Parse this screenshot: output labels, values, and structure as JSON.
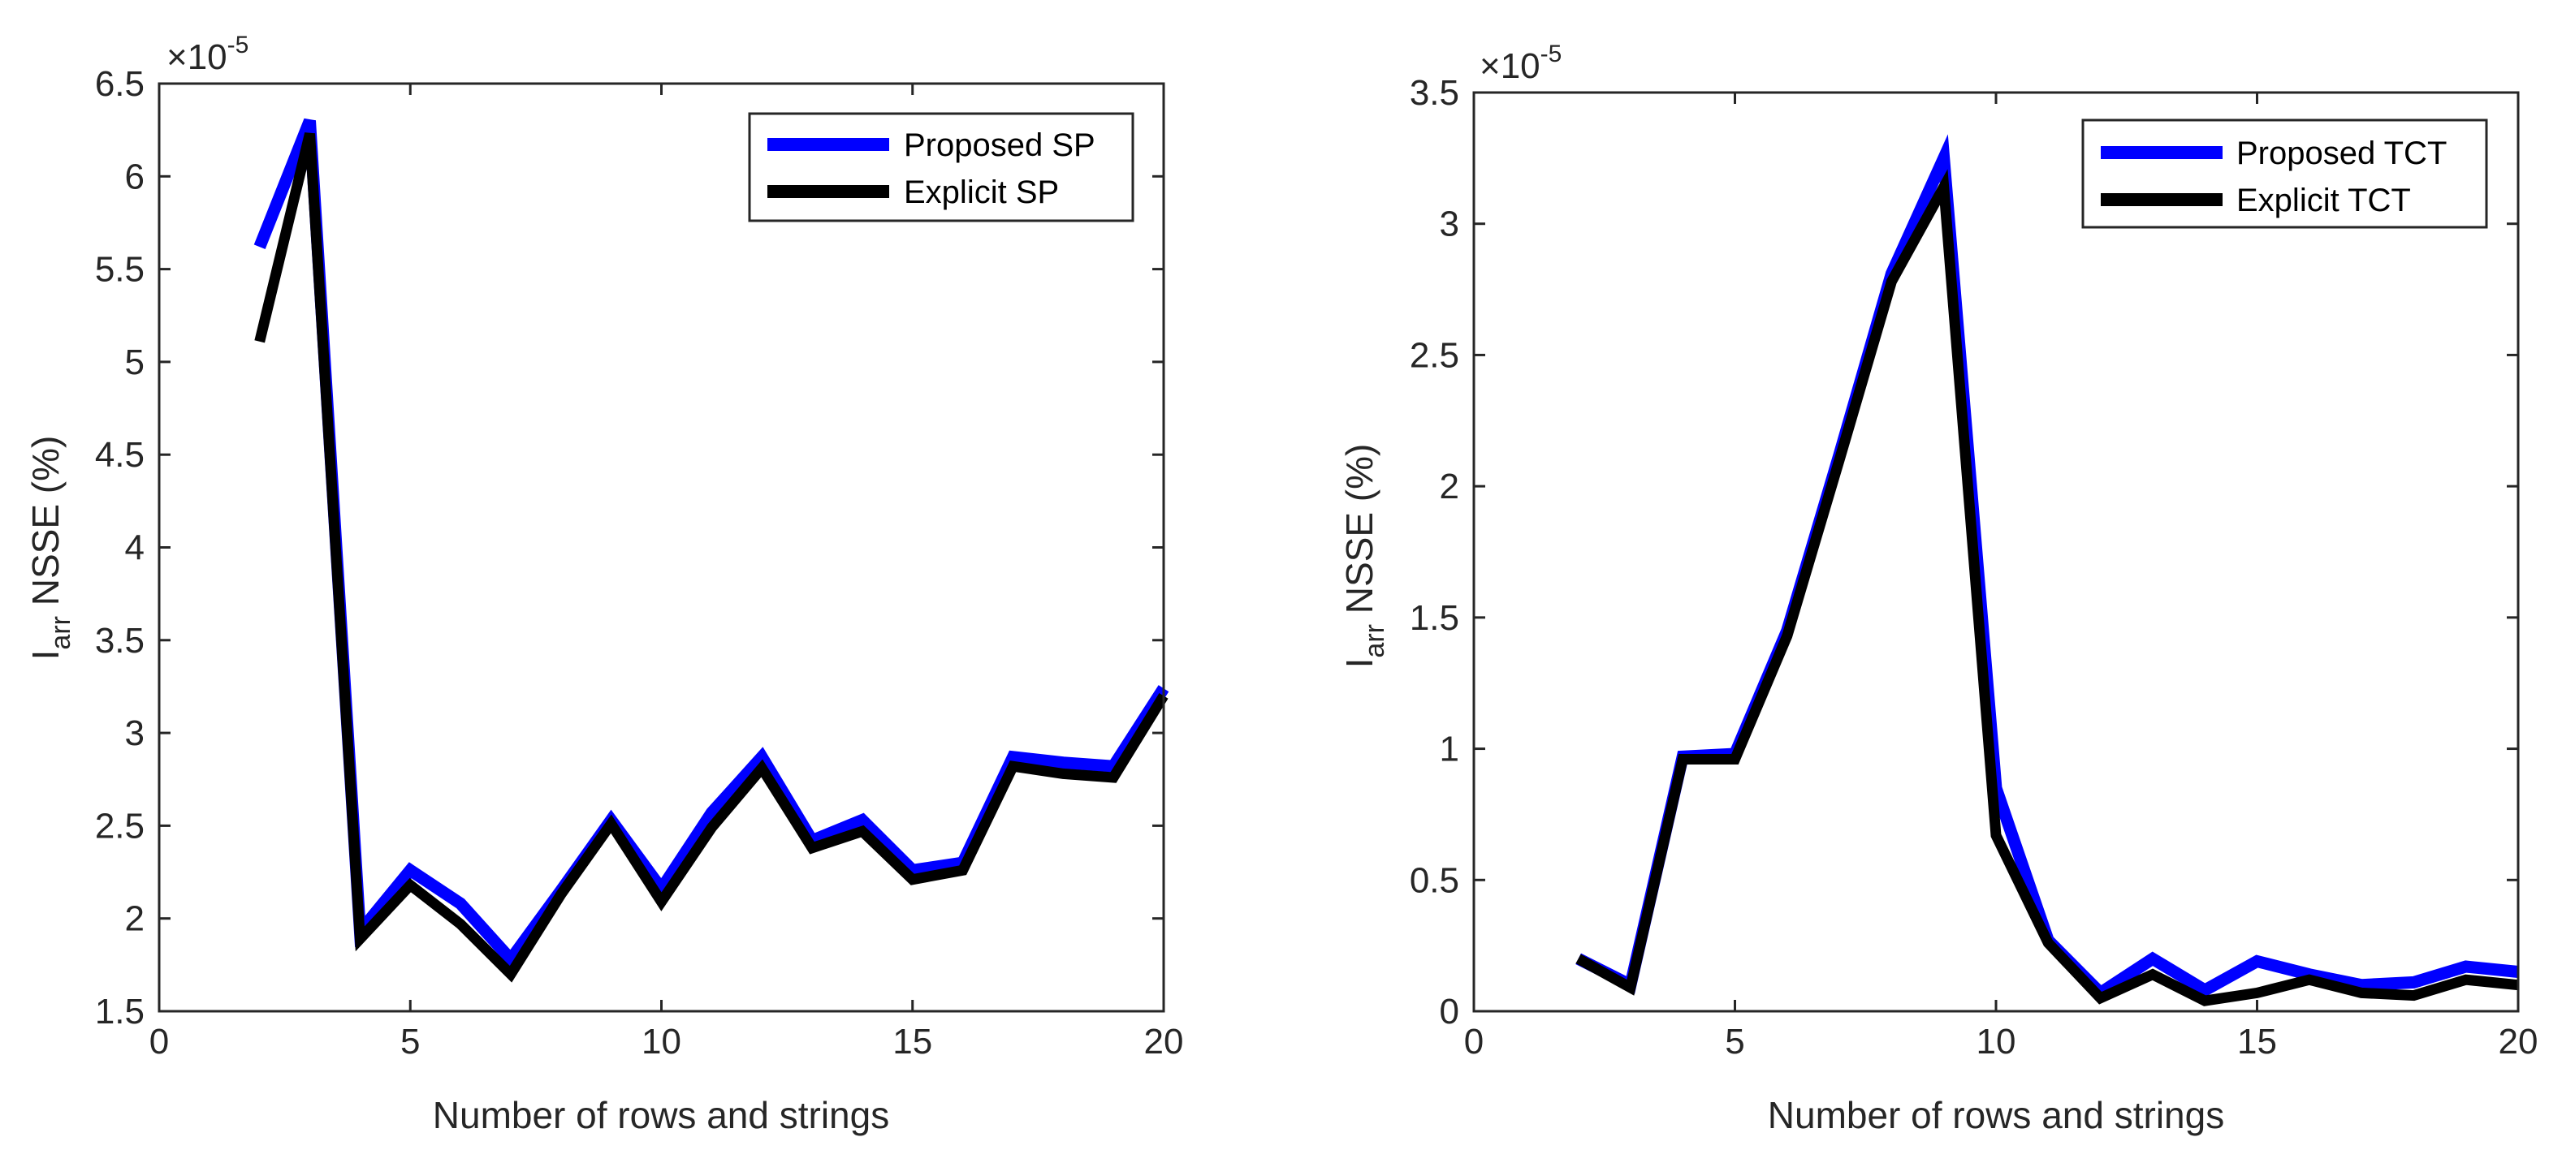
{
  "chart_data": [
    {
      "type": "line",
      "title": "",
      "xlabel": "Number of rows and strings",
      "ylabel_main": "I",
      "ylabel_sub": "arr",
      "ylabel_rest": " NSSE (%)",
      "multiplier_base": "×10",
      "multiplier_exp": "-5",
      "xlim": [
        0,
        20
      ],
      "ylim": [
        1.5,
        6.5
      ],
      "xticks": [
        0,
        5,
        10,
        15,
        20
      ],
      "xtick_labels": [
        "0",
        "5",
        "10",
        "15",
        "20"
      ],
      "yticks": [
        1.5,
        2,
        2.5,
        3,
        3.5,
        4,
        4.5,
        5,
        5.5,
        6,
        6.5
      ],
      "ytick_labels": [
        "1.5",
        "2",
        "2.5",
        "3",
        "3.5",
        "4",
        "4.5",
        "5",
        "5.5",
        "6",
        "6.5"
      ],
      "legend_position": "top-right",
      "series": [
        {
          "name": "Proposed SP",
          "color": "#0000ff",
          "x": [
            2,
            3,
            4,
            5,
            6,
            7,
            8,
            9,
            10,
            11,
            12,
            13,
            14,
            15,
            16,
            17,
            18,
            19,
            20
          ],
          "values": [
            5.62,
            6.3,
            1.93,
            2.26,
            2.08,
            1.78,
            2.15,
            2.53,
            2.16,
            2.57,
            2.87,
            2.42,
            2.53,
            2.26,
            2.3,
            2.87,
            2.84,
            2.82,
            3.24
          ]
        },
        {
          "name": "Explicit SP",
          "color": "#000000",
          "x": [
            2,
            3,
            4,
            5,
            6,
            7,
            8,
            9,
            10,
            11,
            12,
            13,
            14,
            15,
            16,
            17,
            18,
            19,
            20
          ],
          "values": [
            5.11,
            6.23,
            1.89,
            2.18,
            1.97,
            1.7,
            2.13,
            2.51,
            2.09,
            2.49,
            2.81,
            2.38,
            2.47,
            2.21,
            2.26,
            2.82,
            2.78,
            2.76,
            3.2
          ]
        }
      ]
    },
    {
      "type": "line",
      "title": "",
      "xlabel": "Number of rows and strings",
      "ylabel_main": "I",
      "ylabel_sub": "arr",
      "ylabel_rest": " NSSE (%)",
      "multiplier_base": "×10",
      "multiplier_exp": "-5",
      "xlim": [
        0,
        20
      ],
      "ylim": [
        0,
        3.5
      ],
      "xticks": [
        0,
        5,
        10,
        15,
        20
      ],
      "xtick_labels": [
        "0",
        "5",
        "10",
        "15",
        "20"
      ],
      "yticks": [
        0,
        0.5,
        1,
        1.5,
        2,
        2.5,
        3,
        3.5
      ],
      "ytick_labels": [
        "0",
        "0.5",
        "1",
        "1.5",
        "2",
        "2.5",
        "3",
        "3.5"
      ],
      "legend_position": "top-right",
      "series": [
        {
          "name": "Proposed TCT",
          "color": "#0000ff",
          "x": [
            2,
            3,
            4,
            5,
            6,
            7,
            8,
            9,
            10,
            11,
            12,
            13,
            14,
            15,
            16,
            17,
            18,
            19,
            20
          ],
          "values": [
            0.2,
            0.1,
            0.97,
            0.98,
            1.45,
            2.12,
            2.81,
            3.25,
            0.85,
            0.27,
            0.07,
            0.2,
            0.08,
            0.19,
            0.14,
            0.1,
            0.11,
            0.17,
            0.15
          ]
        },
        {
          "name": "Explicit TCT",
          "color": "#000000",
          "x": [
            2,
            3,
            4,
            5,
            6,
            7,
            8,
            9,
            10,
            11,
            12,
            13,
            14,
            15,
            16,
            17,
            18,
            19,
            20
          ],
          "values": [
            0.2,
            0.09,
            0.96,
            0.96,
            1.43,
            2.1,
            2.78,
            3.14,
            0.67,
            0.26,
            0.05,
            0.14,
            0.04,
            0.07,
            0.12,
            0.07,
            0.06,
            0.12,
            0.1
          ]
        }
      ]
    }
  ]
}
